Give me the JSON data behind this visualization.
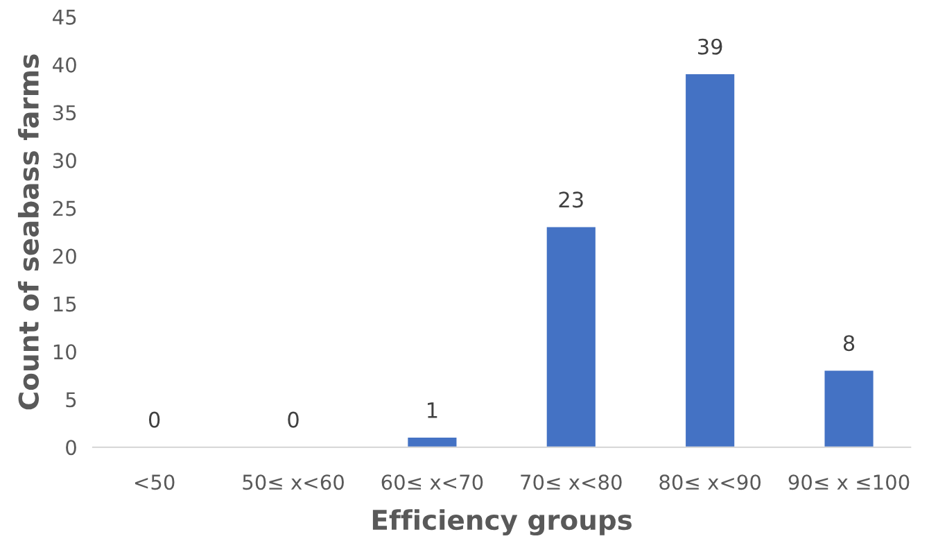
{
  "chart_data": {
    "type": "bar",
    "xlabel": "Efficiency groups",
    "ylabel": "Count of seabass farms",
    "categories": [
      "<50",
      "50≤ x<60",
      "60≤ x<70",
      "70≤ x<80",
      "80≤ x<90",
      "90≤ x ≤100"
    ],
    "values": [
      0,
      0,
      1,
      23,
      39,
      8
    ],
    "color": "#4472c4",
    "ylim": [
      0,
      45
    ],
    "yticks": [
      0,
      5,
      10,
      15,
      20,
      25,
      30,
      35,
      40,
      45
    ],
    "data_labels": true,
    "grid": false
  }
}
